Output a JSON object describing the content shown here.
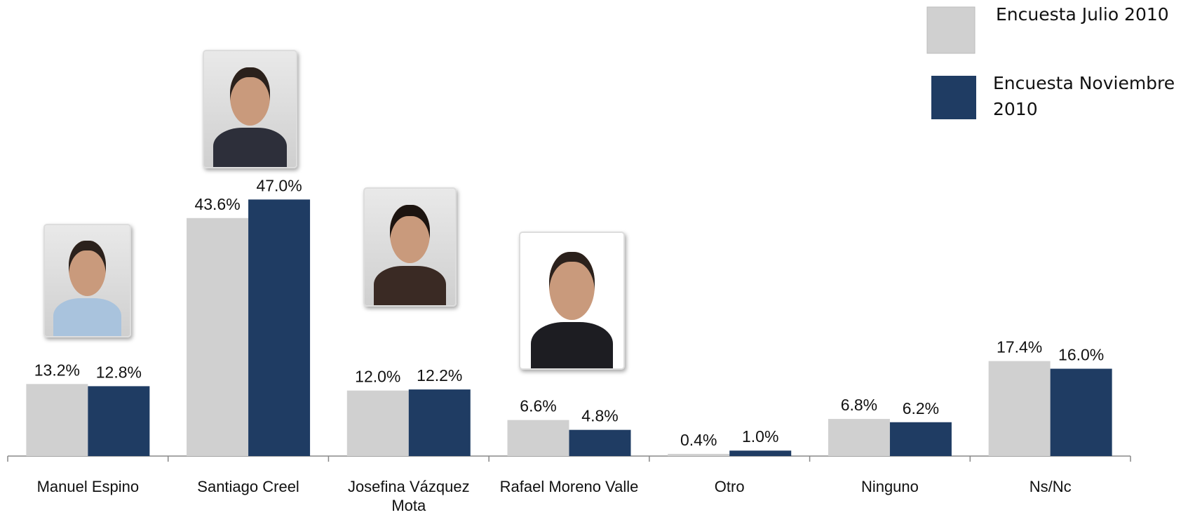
{
  "chart_data": {
    "type": "bar",
    "categories": [
      "Manuel Espino",
      "Santiago Creel",
      "Josefina Vázquez Mota",
      "Rafael Moreno Valle",
      "Otro",
      "Ninguno",
      "Ns/Nc"
    ],
    "series": [
      {
        "name": "Encuesta Julio 2010",
        "color": "#d0d0d0",
        "values": [
          13.2,
          43.6,
          12.0,
          6.6,
          0.4,
          6.8,
          17.4
        ],
        "value_labels": [
          "13.2%",
          "43.6%",
          "12.0%",
          "6.6%",
          "0.4%",
          "6.8%",
          "17.4%"
        ]
      },
      {
        "name": "Encuesta Noviembre 2010",
        "color": "#1f3c63",
        "values": [
          12.8,
          47.0,
          12.2,
          4.8,
          1.0,
          6.2,
          16.0
        ],
        "value_labels": [
          "12.8%",
          "47.0%",
          "12.2%",
          "4.8%",
          "1.0%",
          "6.2%",
          "16.0%"
        ]
      }
    ]
  }
}
